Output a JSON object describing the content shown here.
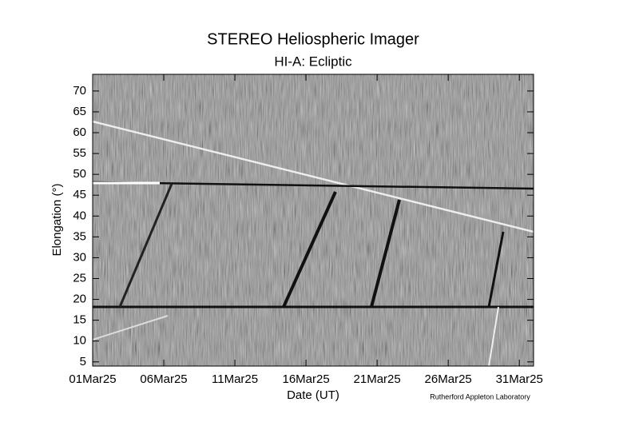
{
  "chart_data": {
    "type": "heatmap",
    "title": "STEREO Heliospheric Imager",
    "subtitle": "HI-A: Ecliptic",
    "y_label": "Elongation (°)",
    "x_label": "Date (UT)",
    "credit": "Rutherford Appleton Laboratory",
    "ylim": [
      4,
      74
    ],
    "yticks": [
      5,
      10,
      15,
      20,
      25,
      30,
      35,
      40,
      45,
      50,
      55,
      60,
      65,
      70
    ],
    "xlim": [
      "2025-03-01",
      "2025-04-01"
    ],
    "xticks": [
      {
        "value": "2025-03-01",
        "label": "01Mar25"
      },
      {
        "value": "2025-03-06",
        "label": "06Mar25"
      },
      {
        "value": "2025-03-11",
        "label": "11Mar25"
      },
      {
        "value": "2025-03-16",
        "label": "16Mar25"
      },
      {
        "value": "2025-03-21",
        "label": "21Mar25"
      },
      {
        "value": "2025-03-26",
        "label": "26Mar25"
      },
      {
        "value": "2025-03-31",
        "label": "31Mar25"
      }
    ]
  }
}
